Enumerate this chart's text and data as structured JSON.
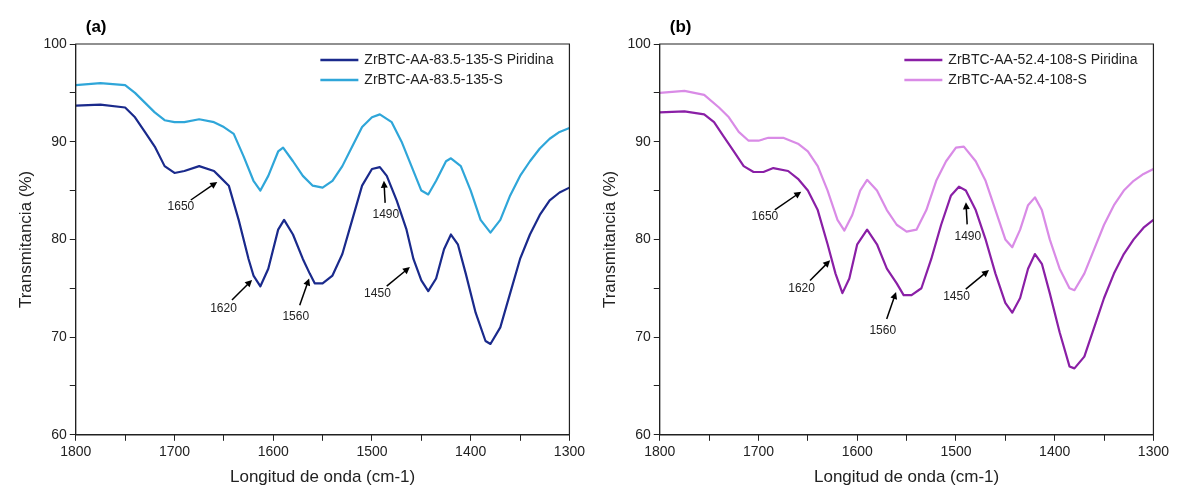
{
  "chart_data": [
    {
      "type": "line",
      "title": "(a)",
      "xlabel": "Longitud de onda (cm-1)",
      "ylabel": "Transmitancia (%)",
      "xlim": [
        1800,
        1300
      ],
      "ylim": [
        60,
        100
      ],
      "xticks": [
        1800,
        {
          "value": 1750,
          "label": null
        },
        1700,
        {
          "value": 1650,
          "label": null
        },
        1600,
        {
          "value": 1550,
          "label": null
        },
        1500,
        {
          "value": 1450,
          "label": null
        },
        1400,
        {
          "value": 1350,
          "label": null
        },
        1300
      ],
      "yticks": [
        60,
        {
          "value": 65,
          "label": null
        },
        70,
        {
          "value": 75,
          "label": null
        },
        80,
        {
          "value": 85,
          "label": null
        },
        90,
        {
          "value": 95,
          "label": null
        },
        100
      ],
      "grid": false,
      "legend": "top right",
      "marker": "none",
      "line_style": "solid",
      "series": [
        {
          "name": "ZrBTC-AA-83.5-135-S Piridina",
          "color": "#1a2a8c",
          "x": [
            1800,
            1775,
            1750,
            1740,
            1730,
            1720,
            1710,
            1700,
            1690,
            1675,
            1660,
            1655,
            1645,
            1635,
            1625,
            1620,
            1613,
            1605,
            1595,
            1589,
            1580,
            1570,
            1563,
            1558,
            1550,
            1540,
            1530,
            1520,
            1510,
            1500,
            1492,
            1485,
            1475,
            1465,
            1458,
            1450,
            1443,
            1435,
            1427,
            1420,
            1413,
            1405,
            1395,
            1385,
            1380,
            1370,
            1360,
            1350,
            1340,
            1330,
            1320,
            1310,
            1300
          ],
          "values": [
            93.7,
            93.8,
            93.5,
            92.5,
            91,
            89.5,
            87.5,
            86.8,
            87,
            87.5,
            87,
            86.5,
            85.5,
            82,
            78,
            76.3,
            75.2,
            77,
            81,
            82,
            80.5,
            78,
            76.5,
            75.5,
            75.5,
            76.3,
            78.5,
            82,
            85.5,
            87.2,
            87.4,
            86.5,
            84,
            81,
            78,
            75.8,
            74.7,
            76,
            79,
            80.5,
            79.5,
            76.5,
            72.5,
            69.6,
            69.3,
            71,
            74.5,
            78,
            80.5,
            82.5,
            84,
            84.8,
            85.3
          ]
        },
        {
          "name": "ZrBTC-AA-83.5-135-S",
          "color": "#2fa6d9",
          "x": [
            1800,
            1775,
            1750,
            1740,
            1730,
            1720,
            1710,
            1700,
            1690,
            1675,
            1660,
            1650,
            1640,
            1630,
            1620,
            1613,
            1605,
            1595,
            1590,
            1580,
            1570,
            1560,
            1550,
            1540,
            1530,
            1520,
            1510,
            1500,
            1492,
            1480,
            1470,
            1460,
            1450,
            1443,
            1435,
            1425,
            1420,
            1410,
            1400,
            1390,
            1380,
            1370,
            1360,
            1350,
            1340,
            1330,
            1320,
            1310,
            1300
          ],
          "values": [
            95.8,
            96,
            95.8,
            95,
            94,
            93,
            92.2,
            92,
            92,
            92.3,
            92,
            91.5,
            90.8,
            88.5,
            86,
            85,
            86.5,
            89,
            89.4,
            88,
            86.5,
            85.5,
            85.3,
            86,
            87.5,
            89.5,
            91.5,
            92.5,
            92.8,
            92,
            90,
            87.5,
            85,
            84.6,
            86,
            88,
            88.3,
            87.5,
            85,
            82,
            80.7,
            82,
            84.5,
            86.5,
            88,
            89.3,
            90.3,
            91,
            91.4
          ]
        }
      ],
      "annotations": [
        {
          "text": "1650",
          "x": 1655,
          "y": 86
        },
        {
          "text": "1620",
          "x": 1620,
          "y": 76
        },
        {
          "text": "1560",
          "x": 1563,
          "y": 76.2
        },
        {
          "text": "1490",
          "x": 1488,
          "y": 86.2
        },
        {
          "text": "1450",
          "x": 1460,
          "y": 77.3
        }
      ]
    },
    {
      "type": "line",
      "title": "(b)",
      "xlabel": "Longitud de onda (cm-1)",
      "ylabel": "Transmitancia (%)",
      "xlim": [
        1800,
        1300
      ],
      "ylim": [
        60,
        100
      ],
      "xticks": [
        1800,
        {
          "value": 1750,
          "label": null
        },
        1700,
        {
          "value": 1650,
          "label": null
        },
        1600,
        {
          "value": 1550,
          "label": null
        },
        1500,
        {
          "value": 1450,
          "label": null
        },
        1400,
        {
          "value": 1350,
          "label": null
        },
        1300
      ],
      "yticks": [
        60,
        {
          "value": 65,
          "label": null
        },
        70,
        {
          "value": 75,
          "label": null
        },
        80,
        {
          "value": 85,
          "label": null
        },
        90,
        {
          "value": 95,
          "label": null
        },
        100
      ],
      "grid": false,
      "legend": "top right",
      "marker": "none",
      "line_style": "solid",
      "series": [
        {
          "name": "ZrBTC-AA-52.4-108-S Piridina",
          "color": "#8a1fa6",
          "x": [
            1800,
            1775,
            1755,
            1745,
            1735,
            1725,
            1715,
            1705,
            1695,
            1685,
            1670,
            1660,
            1650,
            1640,
            1630,
            1622,
            1615,
            1608,
            1600,
            1590,
            1580,
            1570,
            1560,
            1553,
            1545,
            1535,
            1525,
            1515,
            1505,
            1497,
            1490,
            1480,
            1470,
            1460,
            1450,
            1443,
            1435,
            1427,
            1420,
            1413,
            1405,
            1395,
            1385,
            1380,
            1370,
            1360,
            1350,
            1340,
            1330,
            1320,
            1310,
            1300
          ],
          "values": [
            93,
            93.1,
            92.8,
            92,
            90.5,
            89,
            87.5,
            86.9,
            86.9,
            87.3,
            87,
            86.2,
            85,
            83,
            79.5,
            76.5,
            74.5,
            76,
            79.5,
            81,
            79.5,
            77,
            75.5,
            74.3,
            74.3,
            75,
            78,
            81.5,
            84.5,
            85.4,
            85,
            83,
            80,
            76.5,
            73.5,
            72.5,
            74,
            77,
            78.5,
            77.5,
            74.5,
            70.5,
            67,
            66.8,
            68,
            71,
            74,
            76.5,
            78.5,
            80,
            81.2,
            82
          ]
        },
        {
          "name": "ZrBTC-AA-52.4-108-S",
          "color": "#d98be6",
          "x": [
            1800,
            1775,
            1755,
            1740,
            1730,
            1720,
            1710,
            1700,
            1690,
            1675,
            1660,
            1650,
            1640,
            1630,
            1620,
            1613,
            1605,
            1597,
            1590,
            1580,
            1570,
            1560,
            1550,
            1540,
            1530,
            1520,
            1510,
            1500,
            1492,
            1480,
            1470,
            1460,
            1450,
            1443,
            1435,
            1427,
            1420,
            1413,
            1405,
            1395,
            1385,
            1380,
            1370,
            1360,
            1350,
            1340,
            1330,
            1320,
            1310,
            1300
          ],
          "values": [
            95,
            95.2,
            94.8,
            93.5,
            92.5,
            91,
            90.1,
            90.1,
            90.4,
            90.4,
            89.8,
            89,
            87.5,
            85,
            82,
            80.9,
            82.5,
            85,
            86.1,
            85,
            83,
            81.5,
            80.8,
            81,
            83,
            86,
            88,
            89.4,
            89.5,
            88,
            86,
            83,
            80,
            79.2,
            81,
            83.5,
            84.3,
            83,
            80,
            77,
            75,
            74.8,
            76.5,
            79,
            81.5,
            83.5,
            85,
            86,
            86.7,
            87.2
          ]
        }
      ],
      "annotations": [
        {
          "text": "1650",
          "x": 1655,
          "y": 85
        },
        {
          "text": "1620",
          "x": 1626,
          "y": 78
        },
        {
          "text": "1560",
          "x": 1560,
          "y": 74.8
        },
        {
          "text": "1490",
          "x": 1490,
          "y": 84
        },
        {
          "text": "1450",
          "x": 1465,
          "y": 77
        }
      ]
    }
  ]
}
